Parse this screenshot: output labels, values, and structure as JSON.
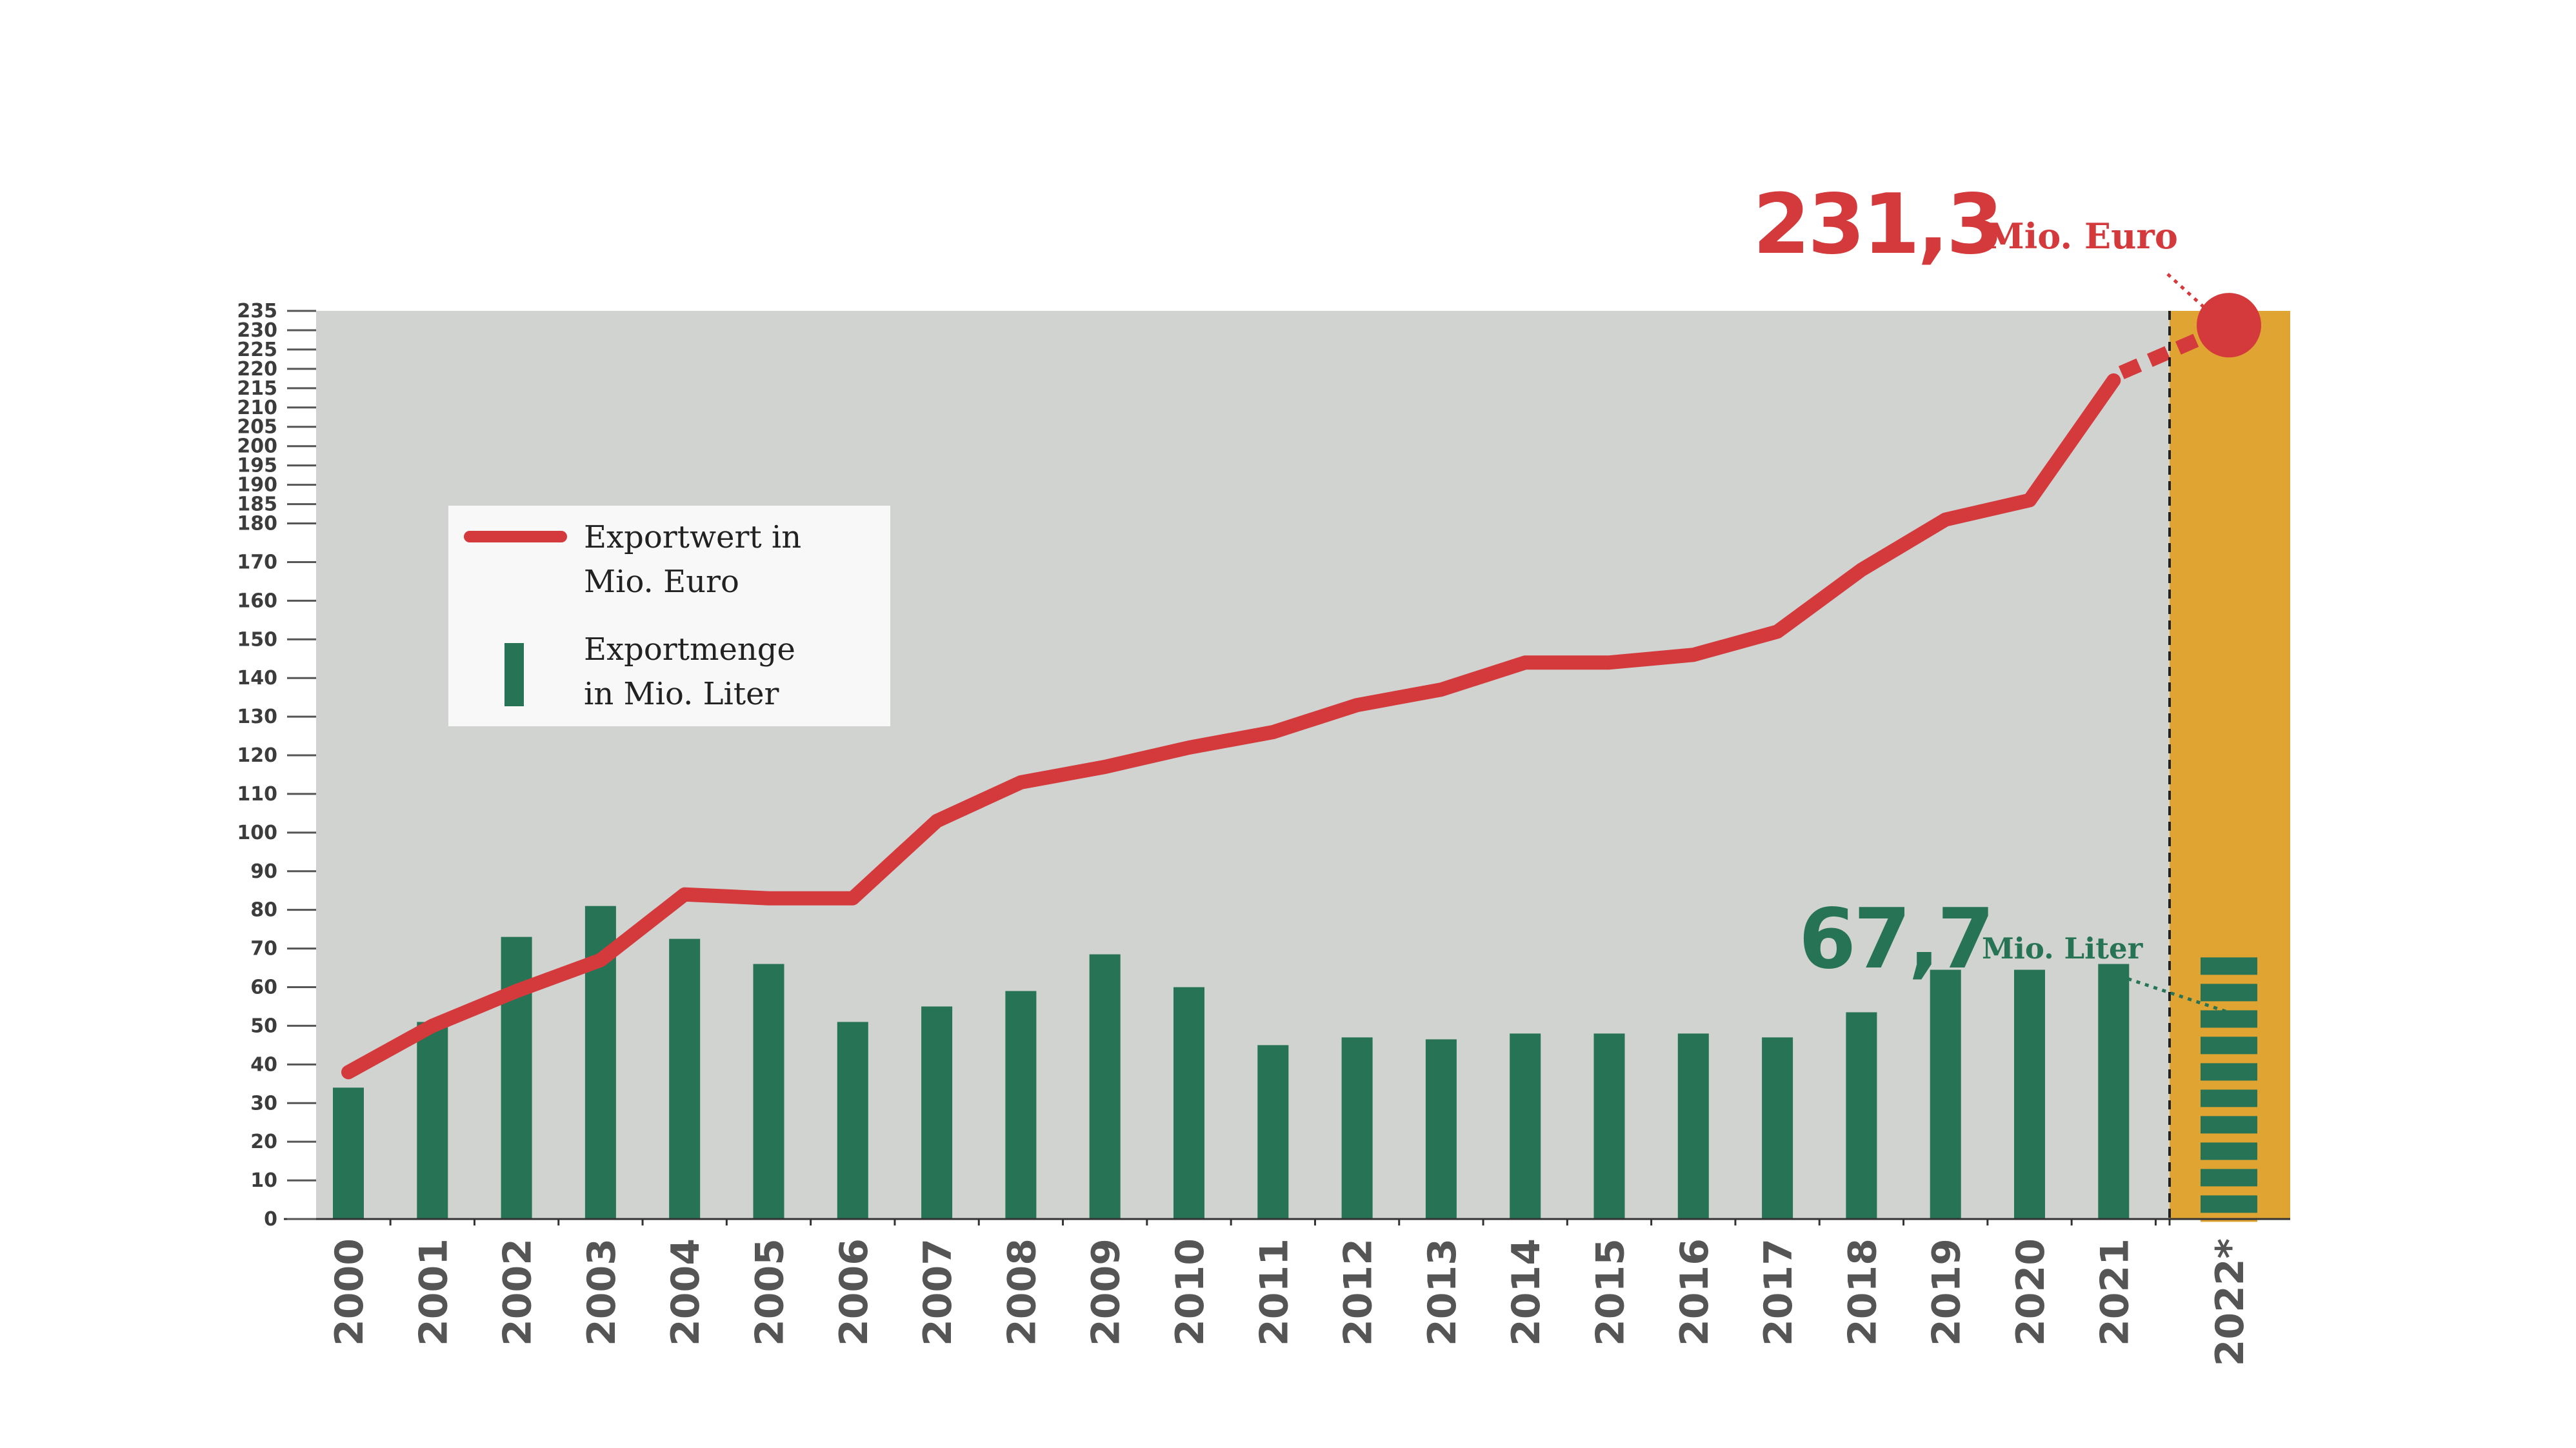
{
  "chart_data": {
    "type": "bar",
    "categories": [
      "2000",
      "2001",
      "2002",
      "2003",
      "2004",
      "2005",
      "2006",
      "2007",
      "2008",
      "2009",
      "2010",
      "2011",
      "2012",
      "2013",
      "2014",
      "2015",
      "2016",
      "2017",
      "2018",
      "2019",
      "2020",
      "2021",
      "2022"
    ],
    "x_tick_labels": [
      "2000",
      "2001",
      "2002",
      "2003",
      "2004",
      "2005",
      "2006",
      "2007",
      "2008",
      "2009",
      "2010",
      "2011",
      "2012",
      "2013",
      "2014",
      "2015",
      "2016",
      "2017",
      "2018",
      "2019",
      "2020",
      "2021",
      "2022*"
    ],
    "series": [
      {
        "name": "Exportwert in Mio. Euro",
        "type": "line",
        "values": [
          38,
          50,
          59,
          67,
          84,
          83,
          83,
          103,
          113,
          117,
          122,
          126,
          133,
          137,
          144,
          144,
          146,
          152,
          168,
          181,
          186,
          217,
          231.3
        ]
      },
      {
        "name": "Exportmenge in Mio. Liter",
        "type": "bar",
        "values": [
          34,
          51,
          73,
          81,
          72.5,
          66,
          51,
          55,
          59,
          68.5,
          60,
          45,
          47,
          46.5,
          48,
          48,
          48,
          47,
          53.5,
          64.5,
          64.5,
          66,
          67.7
        ]
      }
    ],
    "yticks": [
      0,
      10,
      20,
      30,
      40,
      50,
      60,
      70,
      80,
      90,
      100,
      110,
      120,
      130,
      140,
      150,
      160,
      170,
      180,
      185,
      190,
      195,
      200,
      205,
      210,
      215,
      220,
      225,
      230,
      235
    ],
    "ylim": [
      0,
      235
    ],
    "legend": {
      "position": "left",
      "entries": [
        {
          "line1": "Exportwert in",
          "line2": "Mio. Euro"
        },
        {
          "line1": "Exportmenge",
          "line2": "in Mio. Liter"
        }
      ]
    },
    "callouts": {
      "value_euro": "231,3",
      "unit_euro": "Mio. Euro",
      "value_liter": "67,7",
      "unit_liter": "Mio. Liter"
    },
    "forecast_category": "2022*",
    "grid": false
  },
  "colors": {
    "plot_background": "#d0d3d0",
    "forecast_background": "#e0a432",
    "line": "#d43a3c",
    "bar": "#277355",
    "legend_background": "#f8f8f8",
    "axis": "#333333"
  }
}
